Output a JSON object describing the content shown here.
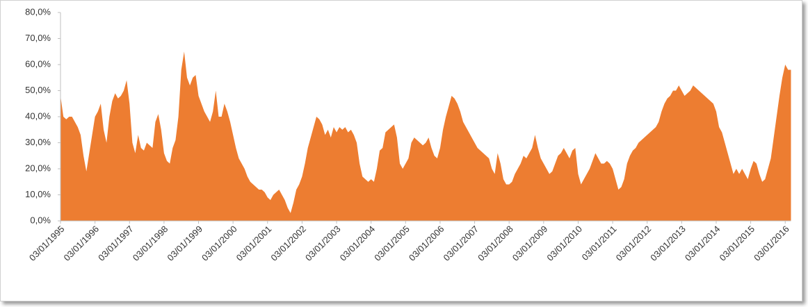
{
  "chart_data": {
    "type": "area",
    "color": "#ed7d31",
    "ylim": [
      0,
      80
    ],
    "yticks": [
      {
        "value": 0,
        "label": "0,0%"
      },
      {
        "value": 10,
        "label": "10,0%"
      },
      {
        "value": 20,
        "label": "20,0%"
      },
      {
        "value": 30,
        "label": "30,0%"
      },
      {
        "value": 40,
        "label": "40,0%"
      },
      {
        "value": 50,
        "label": "50,0%"
      },
      {
        "value": 60,
        "label": "60,0%"
      },
      {
        "value": 70,
        "label": "70,0%"
      },
      {
        "value": 80,
        "label": "80,0%"
      }
    ],
    "categories": [
      "03/01/1995",
      null,
      null,
      null,
      null,
      null,
      null,
      null,
      null,
      null,
      null,
      null,
      "03/01/1996",
      null,
      null,
      null,
      null,
      null,
      null,
      null,
      null,
      null,
      null,
      null,
      "03/01/1997",
      null,
      null,
      null,
      null,
      null,
      null,
      null,
      null,
      null,
      null,
      null,
      "03/01/1998",
      null,
      null,
      null,
      null,
      null,
      null,
      null,
      null,
      null,
      null,
      null,
      "03/01/1999",
      null,
      null,
      null,
      null,
      null,
      null,
      null,
      null,
      null,
      null,
      null,
      "03/01/2000",
      null,
      null,
      null,
      null,
      null,
      null,
      null,
      null,
      null,
      null,
      null,
      "03/01/2001",
      null,
      null,
      null,
      null,
      null,
      null,
      null,
      null,
      null,
      null,
      null,
      "03/01/2002",
      null,
      null,
      null,
      null,
      null,
      null,
      null,
      null,
      null,
      null,
      null,
      "03/01/2003",
      null,
      null,
      null,
      null,
      null,
      null,
      null,
      null,
      null,
      null,
      null,
      "03/01/2004",
      null,
      null,
      null,
      null,
      null,
      null,
      null,
      null,
      null,
      null,
      null,
      "03/01/2005",
      null,
      null,
      null,
      null,
      null,
      null,
      null,
      null,
      null,
      null,
      null,
      "03/01/2006",
      null,
      null,
      null,
      null,
      null,
      null,
      null,
      null,
      null,
      null,
      null,
      "03/01/2007",
      null,
      null,
      null,
      null,
      null,
      null,
      null,
      null,
      null,
      null,
      null,
      "03/01/2008",
      null,
      null,
      null,
      null,
      null,
      null,
      null,
      null,
      null,
      null,
      null,
      "03/01/2009",
      null,
      null,
      null,
      null,
      null,
      null,
      null,
      null,
      null,
      null,
      null,
      "03/01/2010",
      null,
      null,
      null,
      null,
      null,
      null,
      null,
      null,
      null,
      null,
      null,
      "03/01/2011",
      null,
      null,
      null,
      null,
      null,
      null,
      null,
      null,
      null,
      null,
      null,
      "03/01/2012",
      null,
      null,
      null,
      null,
      null,
      null,
      null,
      null,
      null,
      null,
      null,
      "03/01/2013",
      null,
      null,
      null,
      null,
      null,
      null,
      null,
      null,
      null,
      null,
      null,
      "03/01/2014",
      null,
      null,
      null,
      null,
      null,
      null,
      null,
      null,
      null,
      null,
      null,
      "03/01/2015",
      null,
      null,
      null,
      null,
      null,
      null,
      null,
      null,
      null,
      null,
      null,
      "03/01/2016",
      null,
      null
    ],
    "values": [
      48,
      40,
      39,
      40,
      40,
      38,
      36,
      33,
      25,
      19,
      26,
      33,
      40,
      42,
      45,
      35,
      30,
      40,
      46,
      49,
      47,
      48,
      50,
      54,
      45,
      30,
      26,
      33,
      28,
      27,
      30,
      29,
      28,
      38,
      41,
      35,
      26,
      23,
      22,
      28,
      31,
      40,
      58,
      65,
      55,
      52,
      55,
      56,
      48,
      45,
      42,
      40,
      38,
      42,
      50,
      40,
      40,
      45,
      42,
      38,
      33,
      28,
      24,
      22,
      20,
      17,
      15,
      14,
      13,
      12,
      12,
      11,
      9,
      8,
      10,
      11,
      12,
      10,
      8,
      5,
      3,
      7,
      12,
      14,
      17,
      22,
      28,
      32,
      36,
      40,
      39,
      37,
      33,
      35,
      32,
      36,
      34,
      36,
      35,
      36,
      34,
      35,
      33,
      30,
      22,
      17,
      16,
      15,
      16,
      15,
      20,
      27,
      28,
      34,
      35,
      36,
      37,
      32,
      22,
      20,
      22,
      24,
      30,
      32,
      31,
      30,
      29,
      30,
      32,
      28,
      25,
      24,
      28,
      35,
      40,
      44,
      48,
      47,
      45,
      42,
      38,
      36,
      34,
      32,
      30,
      28,
      27,
      26,
      25,
      24,
      20,
      18,
      26,
      22,
      16,
      14,
      14,
      15,
      18,
      20,
      22,
      25,
      24,
      26,
      28,
      33,
      28,
      24,
      22,
      20,
      18,
      19,
      22,
      25,
      26,
      28,
      26,
      24,
      27,
      28,
      18,
      14,
      16,
      18,
      20,
      23,
      26,
      24,
      22,
      22,
      23,
      22,
      20,
      16,
      12,
      13,
      16,
      22,
      25,
      27,
      28,
      30,
      31,
      32,
      33,
      34,
      35,
      36,
      38,
      42,
      45,
      47,
      48,
      50,
      50,
      52,
      50,
      48,
      49,
      50,
      52,
      51,
      50,
      49,
      48,
      47,
      46,
      45,
      42,
      36,
      34,
      30,
      26,
      22,
      18,
      20,
      18,
      20,
      18,
      16,
      20,
      23,
      22,
      18,
      15,
      16,
      20,
      24,
      32,
      40,
      48,
      55,
      60,
      58,
      58
    ]
  }
}
